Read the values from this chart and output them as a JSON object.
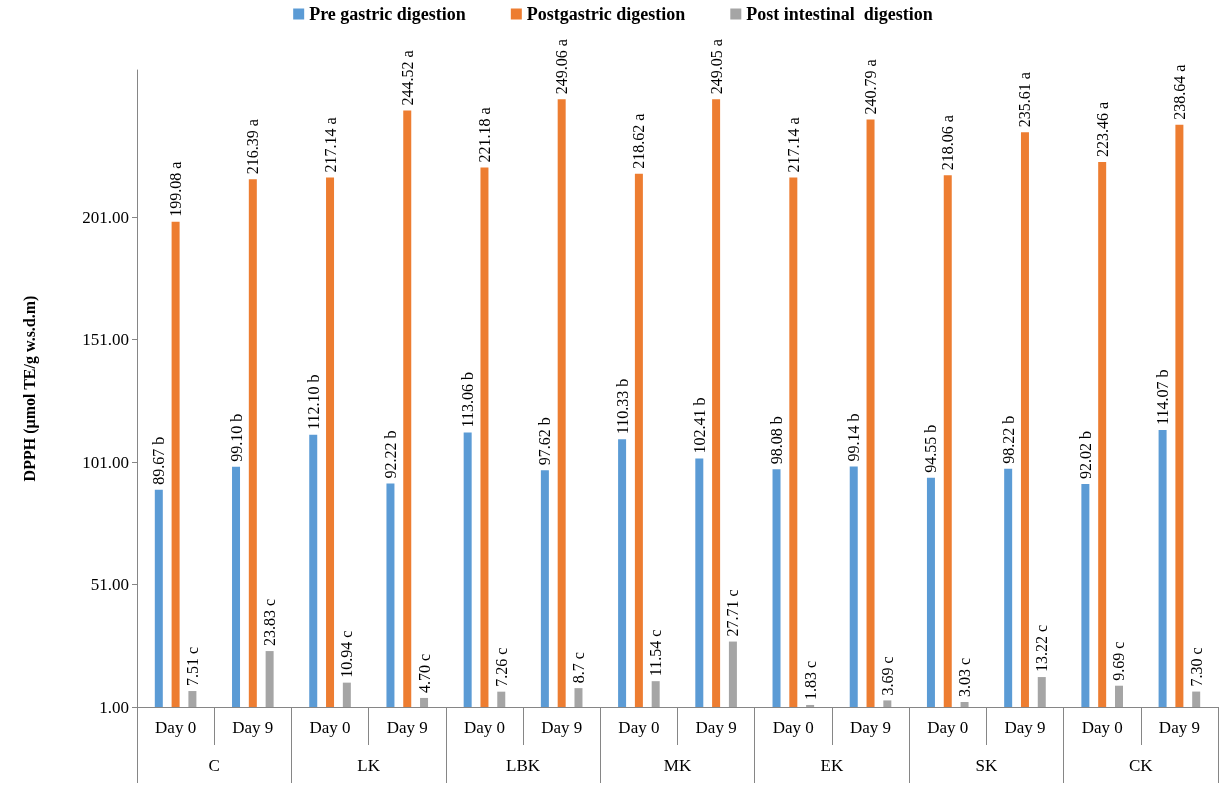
{
  "chart_data": {
    "type": "bar",
    "ylabel": "DPPH (µmol TE/g w.s.d.m)",
    "categories": [
      "Day 0",
      "Day 9",
      "Day 0",
      "Day 9",
      "Day 0",
      "Day 9",
      "Day 0",
      "Day 9",
      "Day 0",
      "Day 9",
      "Day 0",
      "Day 9",
      "Day 0",
      "Day 9"
    ],
    "annotations": [
      "C",
      "LK",
      "LBK",
      "MK",
      "EK",
      "SK",
      "CK"
    ],
    "series": [
      {
        "name": "Pre gastric digestion",
        "color": "#5b9bd5",
        "values": [
          89.67,
          99.1,
          112.1,
          92.22,
          113.06,
          97.62,
          110.33,
          102.41,
          98.08,
          99.14,
          94.55,
          98.22,
          92.02,
          114.07
        ],
        "value_labels": [
          "89.67 b",
          "99.10 b",
          "112.10 b",
          "92.22 b",
          "113.06 b",
          "97.62 b",
          "110.33 b",
          "102.41 b",
          "98.08 b",
          "99.14 b",
          "94.55 b",
          "98.22 b",
          "92.02 b",
          "114.07 b"
        ]
      },
      {
        "name": "Postgastric digestion",
        "color": "#ed7d31",
        "values": [
          199.08,
          216.39,
          217.14,
          244.52,
          221.18,
          249.06,
          218.62,
          249.05,
          217.14,
          240.79,
          218.06,
          235.61,
          223.46,
          238.64
        ],
        "value_labels": [
          "199.08 a",
          "216.39 a",
          "217.14 a",
          "244.52 a",
          "221.18 a",
          "249.06 a",
          "218.62 a",
          "249.05 a",
          "217.14 a",
          "240.79 a",
          "218.06 a",
          "235.61 a",
          "223.46 a",
          "238.64 a"
        ]
      },
      {
        "name": "Post intestinal  digestion",
        "color": "#a5a5a5",
        "values": [
          7.51,
          23.83,
          10.94,
          4.7,
          7.26,
          8.7,
          11.54,
          27.71,
          1.83,
          3.69,
          3.03,
          13.22,
          9.69,
          7.3
        ],
        "value_labels": [
          "7.51 c",
          "23.83 c",
          "10.94 c",
          "4.70 c",
          "7.26 c",
          "8.7 c",
          "11.54 c",
          "27.71 c",
          "1.83 c",
          "3.69 c",
          "3.03 c",
          "13.22 c",
          "9.69 c",
          "7.30 c"
        ]
      }
    ],
    "ylim": [
      1,
      261
    ],
    "yticks": [
      {
        "value": 1,
        "label": "1.00"
      },
      {
        "value": 51,
        "label": "51.00"
      },
      {
        "value": 101,
        "label": "101.00"
      },
      {
        "value": 151,
        "label": "151.00"
      },
      {
        "value": 201,
        "label": "201.00"
      }
    ],
    "grid": false,
    "legend": "top"
  }
}
